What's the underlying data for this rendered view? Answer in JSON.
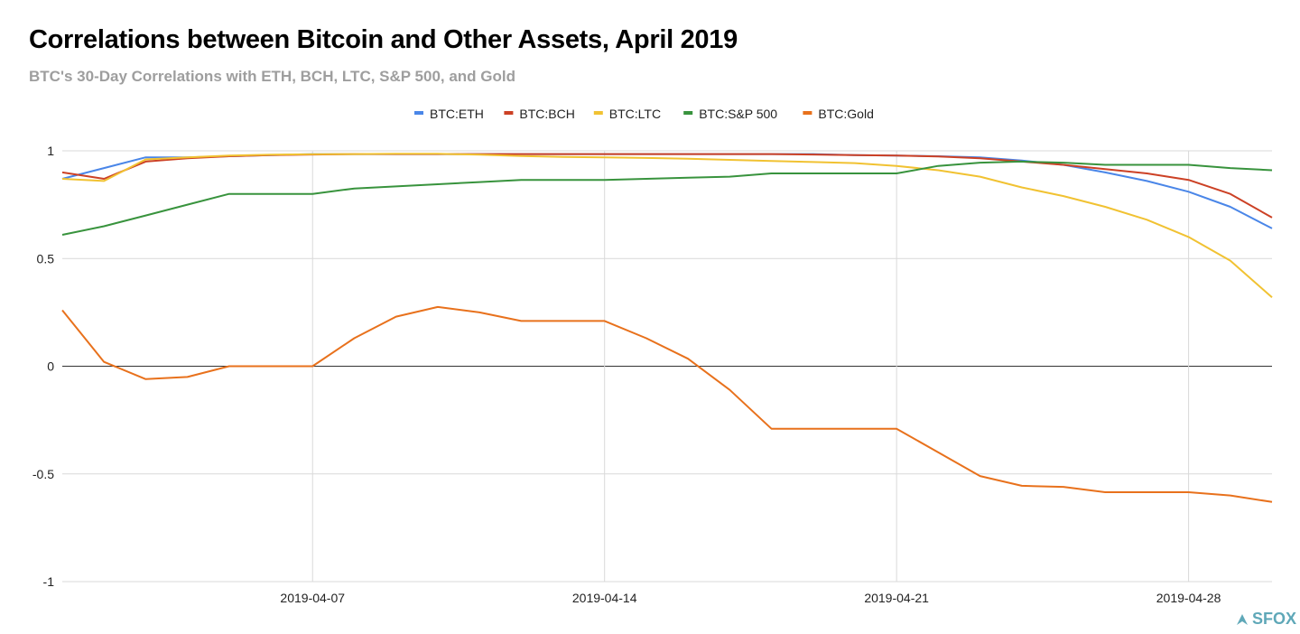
{
  "title": "Correlations between Bitcoin and Other Assets, April 2019",
  "subtitle": "BTC's 30-Day Correlations with ETH, BCH, LTC, S&P 500, and Gold",
  "logo_text": "SFOX",
  "chart_data": {
    "type": "line",
    "x": [
      "2019-04-01",
      "2019-04-02",
      "2019-04-03",
      "2019-04-04",
      "2019-04-05",
      "2019-04-06",
      "2019-04-07",
      "2019-04-08",
      "2019-04-09",
      "2019-04-10",
      "2019-04-11",
      "2019-04-12",
      "2019-04-13",
      "2019-04-14",
      "2019-04-15",
      "2019-04-16",
      "2019-04-17",
      "2019-04-18",
      "2019-04-19",
      "2019-04-20",
      "2019-04-21",
      "2019-04-22",
      "2019-04-23",
      "2019-04-24",
      "2019-04-25",
      "2019-04-26",
      "2019-04-27",
      "2019-04-28",
      "2019-04-29",
      "2019-04-30"
    ],
    "xticks": [
      "2019-04-07",
      "2019-04-14",
      "2019-04-21",
      "2019-04-28"
    ],
    "yticks": [
      1,
      0.5,
      0,
      -0.5,
      -1
    ],
    "ytick_labels": [
      "1",
      "0.5",
      "0",
      "-0.5",
      "-1"
    ],
    "ylim": [
      -1,
      1
    ],
    "grid": true,
    "legend": "top-center",
    "series": [
      {
        "name": "BTC:ETH",
        "color": "#4a86e8",
        "values": [
          0.87,
          0.92,
          0.97,
          0.97,
          0.975,
          0.98,
          0.985,
          0.985,
          0.985,
          0.985,
          0.985,
          0.985,
          0.985,
          0.985,
          0.985,
          0.985,
          0.985,
          0.985,
          0.985,
          0.98,
          0.978,
          0.975,
          0.97,
          0.955,
          0.935,
          0.9,
          0.86,
          0.81,
          0.74,
          0.64
        ]
      },
      {
        "name": "BTC:BCH",
        "color": "#cc4125",
        "values": [
          0.9,
          0.87,
          0.95,
          0.965,
          0.975,
          0.98,
          0.983,
          0.985,
          0.985,
          0.985,
          0.985,
          0.985,
          0.985,
          0.985,
          0.985,
          0.985,
          0.985,
          0.985,
          0.983,
          0.98,
          0.978,
          0.974,
          0.965,
          0.95,
          0.935,
          0.915,
          0.895,
          0.865,
          0.8,
          0.69
        ]
      },
      {
        "name": "BTC:LTC",
        "color": "#f1c232",
        "values": [
          0.87,
          0.86,
          0.96,
          0.97,
          0.978,
          0.982,
          0.984,
          0.985,
          0.986,
          0.986,
          0.982,
          0.976,
          0.972,
          0.97,
          0.967,
          0.963,
          0.958,
          0.953,
          0.948,
          0.943,
          0.93,
          0.91,
          0.88,
          0.83,
          0.79,
          0.74,
          0.68,
          0.6,
          0.49,
          0.32
        ]
      },
      {
        "name": "BTC:S&P 500",
        "color": "#38933d",
        "values": [
          0.61,
          0.65,
          0.7,
          0.75,
          0.8,
          0.8,
          0.8,
          0.825,
          0.835,
          0.845,
          0.855,
          0.865,
          0.865,
          0.865,
          0.87,
          0.875,
          0.88,
          0.895,
          0.895,
          0.895,
          0.895,
          0.93,
          0.945,
          0.95,
          0.945,
          0.935,
          0.935,
          0.935,
          0.92,
          0.91
        ]
      },
      {
        "name": "BTC:Gold",
        "color": "#e8711c",
        "values": [
          0.26,
          0.02,
          -0.06,
          -0.05,
          0.0,
          0.0,
          0.0,
          0.13,
          0.23,
          0.275,
          0.25,
          0.21,
          0.21,
          0.21,
          0.13,
          0.035,
          -0.11,
          -0.29,
          -0.29,
          -0.29,
          -0.29,
          -0.4,
          -0.51,
          -0.555,
          -0.56,
          -0.585,
          -0.585,
          -0.585,
          -0.6,
          -0.63
        ]
      }
    ]
  }
}
